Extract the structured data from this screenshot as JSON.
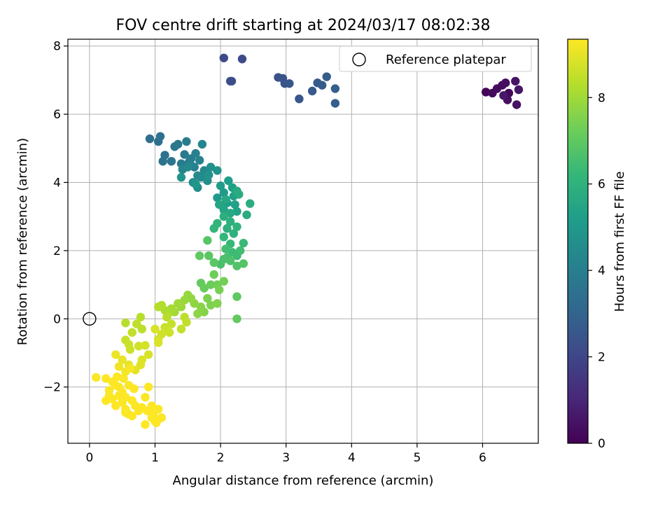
{
  "chart_data": {
    "type": "scatter",
    "title": "FOV centre drift starting at 2024/03/17 08:02:38",
    "xlabel": "Angular distance from reference (arcmin)",
    "ylabel": "Rotation from reference (arcmin)",
    "xlim": [
      -0.33,
      6.85
    ],
    "ylim": [
      -3.65,
      8.2
    ],
    "xticks": [
      0,
      1,
      2,
      3,
      4,
      5,
      6
    ],
    "yticks": [
      -2,
      0,
      2,
      4,
      6,
      8
    ],
    "xtick_labels": [
      "0",
      "1",
      "2",
      "3",
      "4",
      "5",
      "6"
    ],
    "ytick_labels": [
      "−2",
      "0",
      "2",
      "4",
      "6",
      "8"
    ],
    "grid": true,
    "legend": {
      "placement": "top-right",
      "entries": [
        "Reference platepar"
      ]
    },
    "reference_point": {
      "x": 0,
      "y": 0,
      "label": "Reference platepar"
    },
    "colorbar": {
      "label": "Hours from first FF file",
      "colormap": "viridis",
      "range": [
        0,
        9.35
      ],
      "ticks": [
        0,
        2,
        4,
        6,
        8
      ],
      "tick_labels": [
        "0",
        "2",
        "4",
        "6",
        "8"
      ],
      "colors": [
        "#440154",
        "#482878",
        "#3e4989",
        "#31688e",
        "#26828e",
        "#1f9e89",
        "#35b779",
        "#6ece58",
        "#b5de2b",
        "#fde725"
      ]
    },
    "points": [
      [
        6.05,
        6.65,
        0.1
      ],
      [
        6.15,
        6.62,
        0.2
      ],
      [
        6.22,
        6.75,
        0.3
      ],
      [
        6.3,
        6.85,
        0.25
      ],
      [
        6.35,
        6.92,
        0.35
      ],
      [
        6.4,
        6.62,
        0.15
      ],
      [
        6.38,
        6.42,
        0.4
      ],
      [
        6.5,
        6.97,
        0.5
      ],
      [
        6.52,
        6.28,
        0.45
      ],
      [
        6.55,
        6.72,
        0.55
      ],
      [
        6.32,
        6.55,
        0.6
      ],
      [
        2.05,
        7.65,
        2.1
      ],
      [
        2.33,
        7.62,
        2.15
      ],
      [
        2.17,
        6.97,
        2.2
      ],
      [
        2.15,
        6.97,
        2.25
      ],
      [
        2.88,
        7.08,
        2.35
      ],
      [
        2.95,
        7.05,
        2.4
      ],
      [
        2.98,
        6.9,
        2.45
      ],
      [
        3.05,
        6.9,
        2.5
      ],
      [
        3.2,
        6.45,
        2.55
      ],
      [
        3.4,
        6.68,
        2.6
      ],
      [
        3.48,
        6.92,
        2.65
      ],
      [
        3.55,
        6.85,
        2.7
      ],
      [
        3.62,
        7.1,
        2.75
      ],
      [
        3.75,
        6.75,
        2.8
      ],
      [
        3.75,
        6.32,
        2.85
      ],
      [
        0.92,
        5.28,
        3.4
      ],
      [
        1.05,
        5.2,
        3.45
      ],
      [
        1.08,
        5.35,
        3.5
      ],
      [
        1.15,
        4.8,
        3.55
      ],
      [
        1.12,
        4.62,
        3.6
      ],
      [
        1.25,
        4.62,
        3.65
      ],
      [
        1.3,
        5.05,
        3.7
      ],
      [
        1.35,
        5.12,
        3.75
      ],
      [
        1.4,
        4.55,
        3.8
      ],
      [
        1.45,
        4.82,
        3.85
      ],
      [
        1.48,
        5.2,
        3.9
      ],
      [
        1.52,
        4.6,
        3.95
      ],
      [
        1.55,
        4.7,
        4.0
      ],
      [
        1.6,
        4.45,
        4.05
      ],
      [
        1.62,
        4.85,
        4.1
      ],
      [
        1.55,
        4.5,
        4.15
      ],
      [
        1.68,
        4.65,
        4.2
      ],
      [
        1.72,
        5.12,
        4.25
      ],
      [
        1.75,
        4.35,
        4.3
      ],
      [
        1.42,
        4.38,
        4.35
      ],
      [
        1.5,
        4.45,
        4.4
      ],
      [
        1.65,
        4.2,
        4.45
      ],
      [
        1.7,
        4.15,
        4.5
      ],
      [
        1.58,
        4.0,
        4.55
      ],
      [
        1.65,
        3.85,
        4.6
      ],
      [
        1.8,
        4.05,
        4.65
      ],
      [
        1.85,
        4.45,
        4.7
      ],
      [
        1.82,
        4.22,
        4.75
      ],
      [
        1.95,
        4.35,
        4.8
      ],
      [
        1.4,
        4.15,
        4.85
      ],
      [
        1.62,
        3.95,
        4.9
      ],
      [
        1.95,
        3.55,
        5.0
      ],
      [
        2.0,
        3.9,
        5.05
      ],
      [
        2.05,
        3.7,
        5.1
      ],
      [
        2.1,
        3.4,
        5.15
      ],
      [
        2.12,
        4.05,
        5.2
      ],
      [
        2.18,
        3.85,
        5.25
      ],
      [
        2.2,
        3.6,
        5.3
      ],
      [
        2.22,
        3.35,
        5.35
      ],
      [
        2.25,
        3.15,
        5.4
      ],
      [
        2.05,
        3.2,
        5.45
      ],
      [
        1.98,
        3.35,
        5.5
      ],
      [
        2.08,
        3.5,
        5.55
      ],
      [
        2.15,
        3.1,
        5.6
      ],
      [
        2.25,
        3.75,
        5.65
      ],
      [
        2.28,
        3.65,
        5.7
      ],
      [
        2.4,
        3.05,
        5.75
      ],
      [
        2.45,
        3.38,
        5.8
      ],
      [
        2.05,
        3.0,
        5.85
      ],
      [
        2.15,
        2.85,
        5.9
      ],
      [
        2.1,
        2.65,
        5.95
      ],
      [
        2.2,
        2.5,
        6.0
      ],
      [
        2.25,
        2.7,
        6.05
      ],
      [
        1.95,
        2.8,
        6.1
      ],
      [
        1.9,
        2.65,
        6.15
      ],
      [
        2.05,
        2.4,
        6.2
      ],
      [
        2.15,
        2.2,
        6.25
      ],
      [
        2.35,
        2.22,
        6.3
      ],
      [
        2.18,
        1.95,
        6.35
      ],
      [
        2.25,
        1.85,
        6.4
      ],
      [
        2.3,
        2.0,
        6.45
      ],
      [
        2.08,
        2.05,
        6.5
      ],
      [
        2.1,
        1.8,
        6.55
      ],
      [
        2.0,
        1.6,
        6.6
      ],
      [
        2.05,
        1.75,
        6.65
      ],
      [
        2.15,
        1.7,
        6.7
      ],
      [
        2.25,
        1.55,
        6.75
      ],
      [
        2.35,
        1.62,
        6.8
      ],
      [
        1.8,
        2.3,
        6.85
      ],
      [
        1.82,
        1.85,
        6.9
      ],
      [
        1.9,
        1.65,
        6.95
      ],
      [
        2.25,
        0.65,
        7.0
      ],
      [
        2.25,
        0.0,
        7.05
      ],
      [
        1.68,
        1.85,
        7.0
      ],
      [
        1.7,
        1.05,
        7.1
      ],
      [
        1.75,
        0.9,
        7.15
      ],
      [
        1.85,
        1.0,
        7.2
      ],
      [
        1.9,
        1.3,
        7.25
      ],
      [
        1.95,
        1.0,
        7.3
      ],
      [
        2.05,
        1.1,
        7.35
      ],
      [
        1.98,
        0.85,
        7.4
      ],
      [
        1.8,
        0.6,
        7.45
      ],
      [
        1.85,
        0.4,
        7.5
      ],
      [
        1.95,
        0.45,
        7.55
      ],
      [
        1.75,
        0.2,
        7.6
      ],
      [
        1.7,
        0.35,
        7.65
      ],
      [
        1.65,
        0.15,
        7.7
      ],
      [
        1.6,
        0.45,
        7.75
      ],
      [
        1.55,
        0.6,
        7.8
      ],
      [
        1.5,
        0.7,
        7.85
      ],
      [
        1.45,
        0.55,
        7.9
      ],
      [
        1.4,
        0.35,
        7.95
      ],
      [
        1.35,
        0.45,
        8.0
      ],
      [
        1.3,
        0.2,
        8.05
      ],
      [
        1.25,
        0.3,
        8.1
      ],
      [
        1.2,
        0.15,
        8.15
      ],
      [
        1.15,
        0.25,
        8.2
      ],
      [
        1.1,
        0.4,
        8.25
      ],
      [
        1.05,
        0.35,
        8.3
      ],
      [
        1.18,
        0.05,
        8.35
      ],
      [
        1.45,
        0.05,
        8.4
      ],
      [
        1.48,
        -0.1,
        8.45
      ],
      [
        1.4,
        -0.3,
        8.5
      ],
      [
        1.25,
        -0.15,
        8.55
      ],
      [
        1.15,
        -0.25,
        8.6
      ],
      [
        1.22,
        -0.4,
        8.65
      ],
      [
        1.1,
        -0.45,
        8.7
      ],
      [
        1.05,
        -0.6,
        8.75
      ],
      [
        1.0,
        -0.3,
        8.8
      ],
      [
        1.05,
        -0.7,
        8.85
      ],
      [
        0.55,
        -0.12,
        8.3
      ],
      [
        0.78,
        0.05,
        8.35
      ],
      [
        0.8,
        -0.3,
        8.4
      ],
      [
        0.72,
        -0.15,
        8.45
      ],
      [
        0.65,
        -0.4,
        8.5
      ],
      [
        0.55,
        -0.62,
        8.55
      ],
      [
        0.6,
        -0.75,
        8.6
      ],
      [
        0.62,
        -0.9,
        8.65
      ],
      [
        0.75,
        -0.8,
        8.7
      ],
      [
        0.85,
        -0.78,
        8.75
      ],
      [
        0.9,
        -1.05,
        8.8
      ],
      [
        0.8,
        -1.2,
        8.85
      ],
      [
        0.78,
        -1.35,
        8.9
      ],
      [
        0.7,
        -1.5,
        8.95
      ],
      [
        0.6,
        -1.35,
        9.0
      ],
      [
        0.5,
        -1.2,
        9.05
      ],
      [
        0.4,
        -1.05,
        9.1
      ],
      [
        0.45,
        -1.4,
        9.15
      ],
      [
        0.55,
        -1.55,
        9.2
      ],
      [
        0.62,
        -1.45,
        9.25
      ],
      [
        0.52,
        -1.75,
        9.3
      ],
      [
        0.42,
        -1.7,
        9.35
      ],
      [
        0.35,
        -1.85,
        9.35
      ],
      [
        0.1,
        -1.72,
        9.3
      ],
      [
        0.25,
        -1.75,
        9.35
      ],
      [
        0.3,
        -2.1,
        9.3
      ],
      [
        0.45,
        -2.0,
        9.35
      ],
      [
        0.5,
        -2.15,
        9.35
      ],
      [
        0.6,
        -1.95,
        9.3
      ],
      [
        0.68,
        -2.05,
        9.35
      ],
      [
        0.55,
        -2.3,
        9.35
      ],
      [
        0.65,
        -2.4,
        9.35
      ],
      [
        0.5,
        -2.45,
        9.3
      ],
      [
        0.4,
        -2.55,
        9.35
      ],
      [
        0.55,
        -2.65,
        9.35
      ],
      [
        0.7,
        -2.55,
        9.3
      ],
      [
        0.75,
        -2.7,
        9.35
      ],
      [
        0.6,
        -2.8,
        9.35
      ],
      [
        0.55,
        -2.75,
        9.3
      ],
      [
        0.65,
        -2.85,
        9.35
      ],
      [
        0.8,
        -2.6,
        9.35
      ],
      [
        0.85,
        -2.3,
        9.3
      ],
      [
        0.9,
        -2.0,
        9.35
      ],
      [
        0.88,
        -2.7,
        9.35
      ],
      [
        0.95,
        -2.9,
        9.3
      ],
      [
        1.0,
        -3.0,
        9.35
      ],
      [
        1.05,
        -2.95,
        9.35
      ],
      [
        1.1,
        -2.9,
        9.3
      ],
      [
        1.02,
        -3.05,
        9.35
      ],
      [
        0.85,
        -3.1,
        9.35
      ],
      [
        0.98,
        -2.75,
        9.3
      ],
      [
        1.05,
        -2.65,
        9.35
      ],
      [
        0.95,
        -2.55,
        9.35
      ],
      [
        0.3,
        -2.25,
        9.3
      ],
      [
        0.25,
        -2.4,
        9.35
      ],
      [
        0.35,
        -2.35,
        9.35
      ],
      [
        0.45,
        -2.25,
        9.3
      ],
      [
        0.4,
        -1.95,
        9.35
      ]
    ]
  }
}
